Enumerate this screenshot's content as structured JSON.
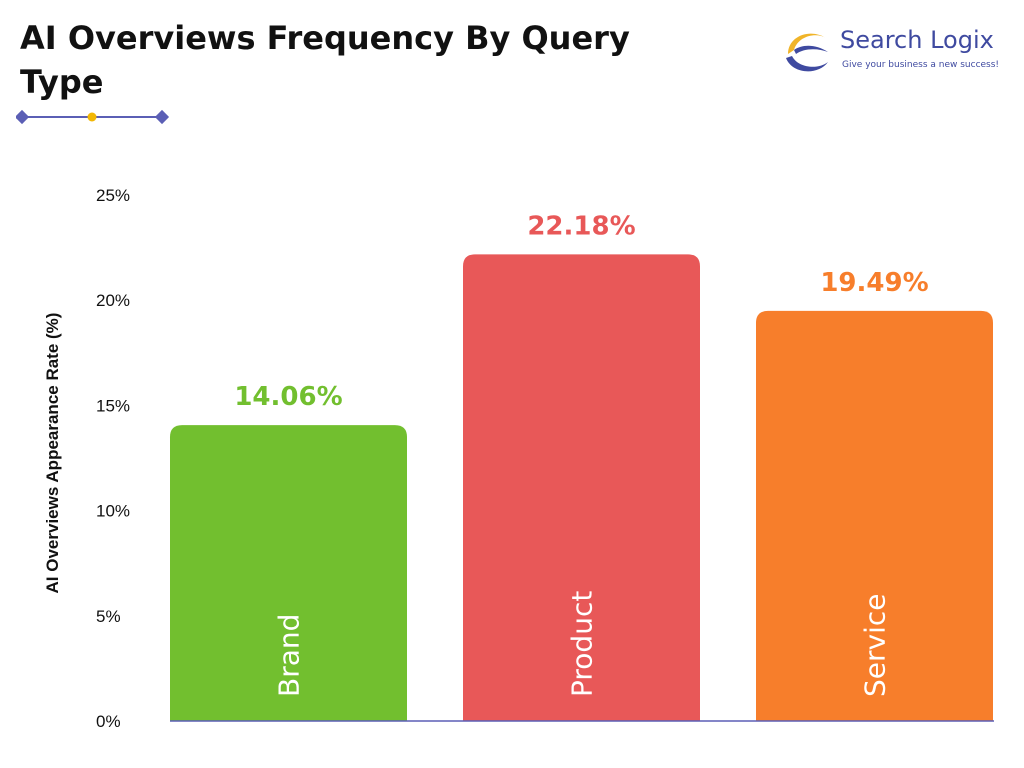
{
  "header": {
    "title": "AI Overviews Frequency By Query Type"
  },
  "logo": {
    "name": "Search Logix",
    "tagline": "Give your business a new success!",
    "colors": {
      "text": "#3f4aa0",
      "swoosh_gold": "#f0b429",
      "swoosh_blue": "#3f4aa0"
    }
  },
  "decoration_colors": {
    "line": "#5b5fb5",
    "dot": "#f2b705"
  },
  "chart_data": {
    "type": "bar",
    "title": "AI Overviews Frequency By Query Type",
    "ylabel": "AI Overviews Appearance Rate (%)",
    "xlabel": "",
    "ylim": [
      0,
      25
    ],
    "yticks": [
      0,
      5,
      10,
      15,
      20,
      25
    ],
    "ytick_labels": [
      "0%",
      "5%",
      "10%",
      "15%",
      "20%",
      "25%"
    ],
    "categories": [
      "Brand",
      "Product",
      "Service"
    ],
    "values": [
      14.06,
      22.18,
      19.49
    ],
    "data_labels": [
      "14.06%",
      "22.18%",
      "19.49%"
    ],
    "colors": [
      "#72bf2f",
      "#e85858",
      "#f77e2b"
    ],
    "grid": false,
    "legend": "none"
  }
}
